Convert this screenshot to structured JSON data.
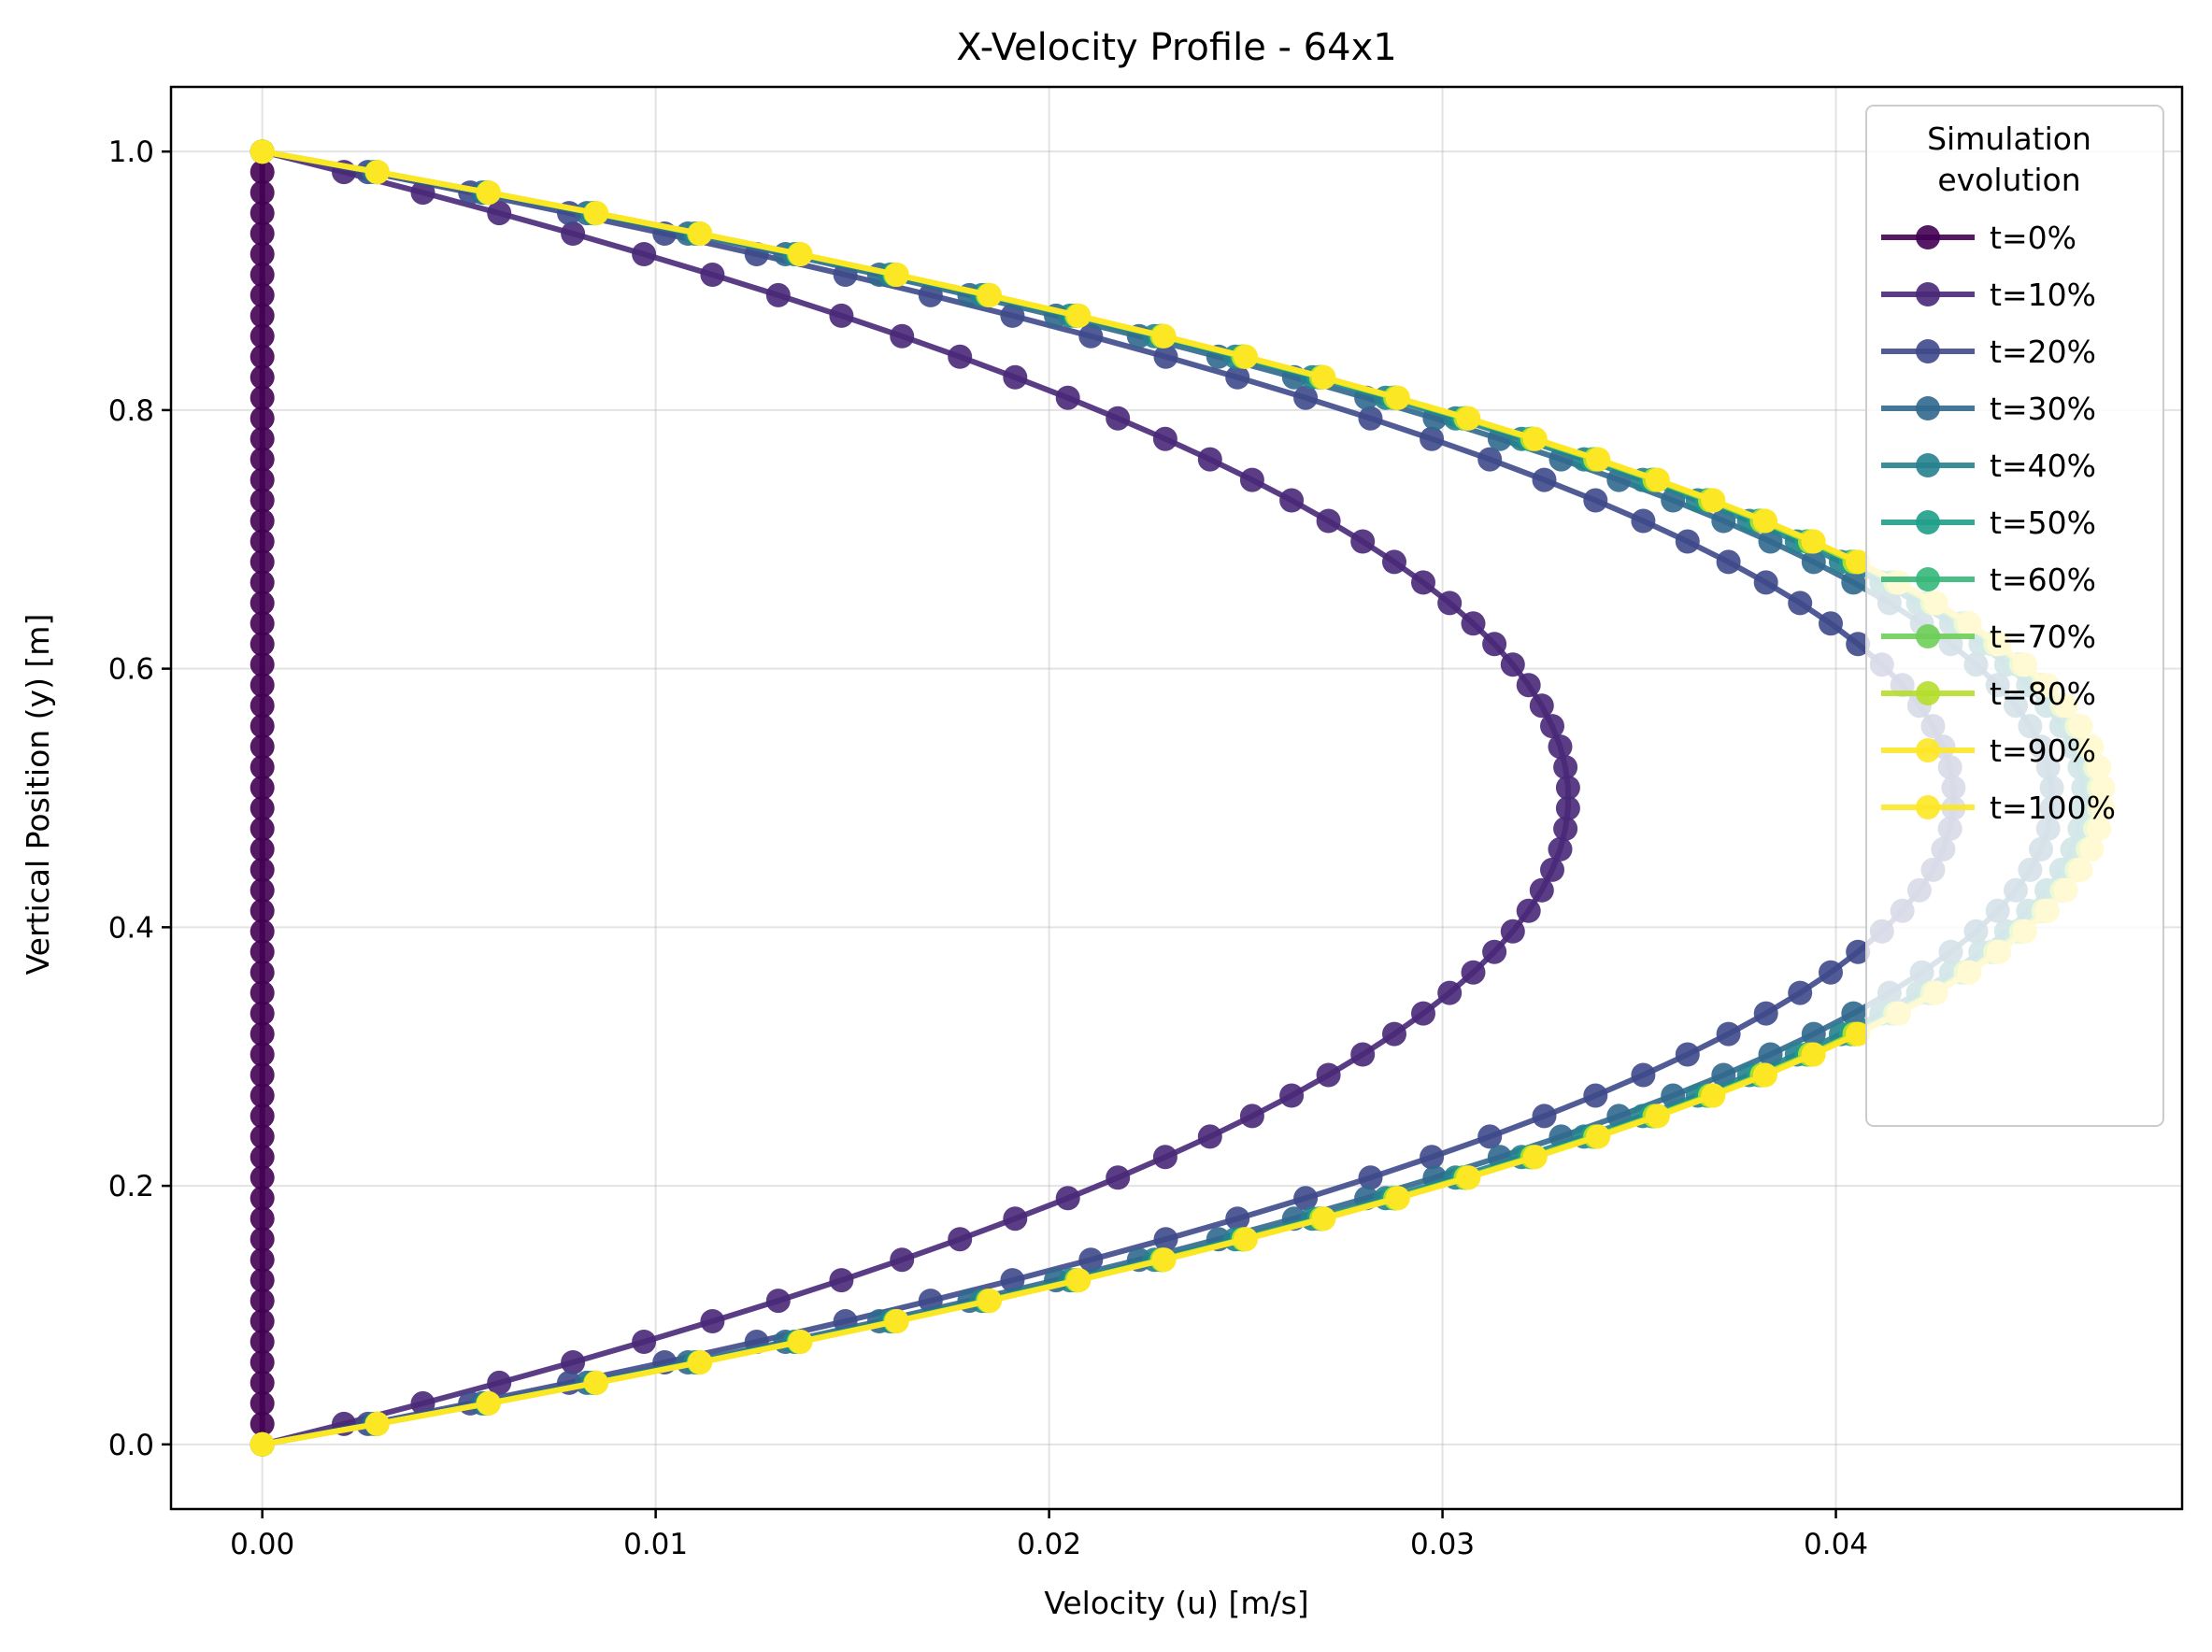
{
  "chart_data": {
    "type": "line",
    "title": "X-Velocity Profile - 64x1",
    "xlabel": "Velocity (u) [m/s]",
    "ylabel": "Vertical Position (y) [m]",
    "xlim": [
      -0.00232,
      0.0488
    ],
    "ylim": [
      -0.05,
      1.05
    ],
    "xticks": [
      0.0,
      0.01,
      0.02,
      0.03,
      0.04
    ],
    "xtick_labels": [
      "0.00",
      "0.01",
      "0.02",
      "0.03",
      "0.04"
    ],
    "yticks": [
      0.0,
      0.2,
      0.4,
      0.6,
      0.8,
      1.0
    ],
    "ytick_labels": [
      "0.0",
      "0.2",
      "0.4",
      "0.6",
      "0.8",
      "1.0"
    ],
    "grid": true,
    "legend": {
      "title": "Simulation\nevolution",
      "placement": "upper right"
    },
    "profile": {
      "points": 64,
      "y_min": 0.0,
      "y_max": 1.0,
      "shape": "parabolic, u = 4 * u_max * y * (1 - y), zero at both walls"
    },
    "series": [
      {
        "name": "t=0%",
        "u_max": 0.0,
        "color": "#440154"
      },
      {
        "name": "t=10%",
        "u_max": 0.0332,
        "color": "#482878"
      },
      {
        "name": "t=20%",
        "u_max": 0.043,
        "color": "#3e4989"
      },
      {
        "name": "t=30%",
        "u_max": 0.0455,
        "color": "#31688e"
      },
      {
        "name": "t=40%",
        "u_max": 0.0463,
        "color": "#26828e"
      },
      {
        "name": "t=50%",
        "u_max": 0.0466,
        "color": "#1f9e89"
      },
      {
        "name": "t=60%",
        "u_max": 0.0467,
        "color": "#35b779"
      },
      {
        "name": "t=70%",
        "u_max": 0.0467,
        "color": "#6ece58"
      },
      {
        "name": "t=80%",
        "u_max": 0.0467,
        "color": "#b5de2b"
      },
      {
        "name": "t=90%",
        "u_max": 0.0468,
        "color": "#fde725"
      },
      {
        "name": "t=100%",
        "u_max": 0.0468,
        "color": "#fde725"
      }
    ]
  }
}
